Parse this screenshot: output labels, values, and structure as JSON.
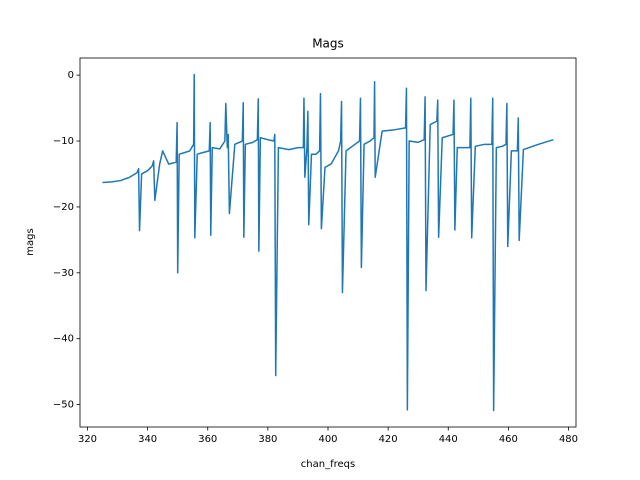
{
  "chart_data": {
    "type": "line",
    "title": "Mags",
    "x_label": "chan_freqs",
    "y_label": "mags",
    "x": [
      325,
      328,
      331,
      334,
      336.5,
      337,
      337.3,
      338,
      340,
      341.5,
      342,
      342.4,
      344,
      345,
      347,
      349.5,
      349.8,
      350,
      350.5,
      352,
      354,
      355.3,
      355.5,
      355.7,
      356.5,
      358,
      360.5,
      360.8,
      361,
      361.5,
      364,
      365.7,
      366,
      366.5,
      366.8,
      367.2,
      369,
      371.5,
      371.8,
      372,
      372.5,
      375,
      376.5,
      376.8,
      377,
      377.5,
      380,
      382,
      382.3,
      382.6,
      383.5,
      387,
      390,
      391.8,
      392,
      392.3,
      393,
      393.3,
      393.6,
      394.5,
      396,
      397.2,
      397.5,
      397.8,
      399,
      401,
      403.5,
      404.2,
      404.5,
      404.8,
      406,
      409,
      410.5,
      410.8,
      411.1,
      412,
      414,
      415.3,
      415.5,
      415.7,
      418,
      422,
      425.8,
      426.1,
      426.4,
      427,
      430,
      432,
      432.3,
      432.6,
      434,
      436.2,
      436.5,
      436.8,
      438,
      441.6,
      441.9,
      442.2,
      443,
      445,
      447.2,
      447.5,
      447.8,
      449,
      452,
      454.5,
      454.8,
      455.1,
      456,
      458,
      459.2,
      459.5,
      459.8,
      461,
      463,
      463.3,
      463.6,
      465,
      470,
      475
    ],
    "series": [
      {
        "color": "#1f77b4",
        "values": [
          -16.3,
          -16.2,
          -16,
          -15.5,
          -14.8,
          -14.2,
          -23.6,
          -15,
          -14.5,
          -13.8,
          -13,
          -19,
          -13.5,
          -11.5,
          -13.5,
          -13.2,
          -7.2,
          -30,
          -12,
          -11.8,
          -11.5,
          -10.5,
          0.1,
          -24.7,
          -12,
          -11.8,
          -11.5,
          -7.2,
          -24.3,
          -11,
          -11.2,
          -10,
          -4.3,
          -11,
          -9,
          -21,
          -10.5,
          -10,
          -4.2,
          -24.6,
          -10.5,
          -10.2,
          -9.8,
          -3.6,
          -26.7,
          -9.5,
          -9.8,
          -10,
          -9,
          -45.6,
          -11,
          -11.3,
          -11,
          -11,
          -3.5,
          -15.5,
          -11,
          -5.5,
          -22.7,
          -12,
          -12,
          -11.5,
          -2.8,
          -23.3,
          -14,
          -13.5,
          -11.5,
          -10,
          -4,
          -33,
          -11.5,
          -10.5,
          -10,
          -3.5,
          -29.2,
          -10.5,
          -10,
          -9.5,
          -1,
          -15.5,
          -8.5,
          -8.3,
          -8,
          -2,
          -50.8,
          -10,
          -10.2,
          -9.8,
          -3.3,
          -32.7,
          -7.5,
          -7,
          -3.8,
          -24.6,
          -9.5,
          -9,
          -3.8,
          -23.5,
          -11,
          -11,
          -11,
          -3.5,
          -24.7,
          -10.8,
          -10.5,
          -10.5,
          -3.5,
          -50.9,
          -11,
          -10.8,
          -10.5,
          -4.3,
          -26,
          -11.5,
          -11.5,
          -6.5,
          -25.1,
          -11.3,
          -10.5,
          -9.8
        ]
      }
    ],
    "xlim": [
      317.5,
      482.5
    ],
    "ylim": [
      -53.4,
      2.6
    ],
    "xticks": [
      320,
      340,
      360,
      380,
      400,
      420,
      440,
      460,
      480
    ],
    "yticks": [
      {
        "value": 0,
        "label": "0"
      },
      {
        "value": -10,
        "label": "−10"
      },
      {
        "value": -20,
        "label": "−20"
      },
      {
        "value": -30,
        "label": "−30"
      },
      {
        "value": -40,
        "label": "−40"
      },
      {
        "value": -50,
        "label": "−50"
      }
    ]
  }
}
